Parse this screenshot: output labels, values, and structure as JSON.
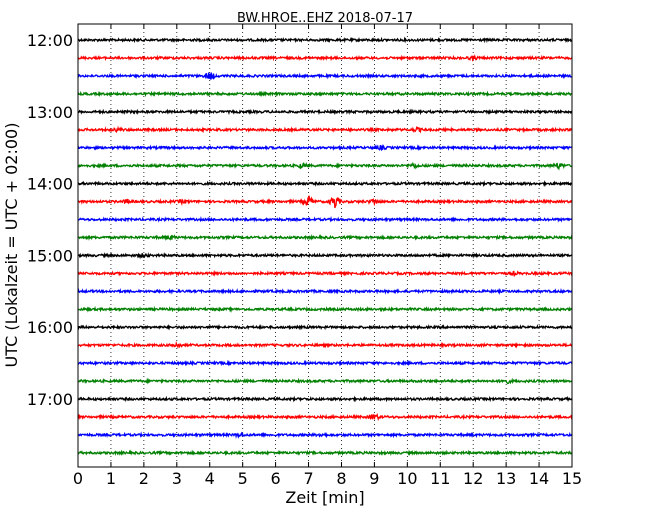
{
  "chart_data": {
    "type": "line",
    "title": "BW.HROE..EHZ 2018-07-17",
    "xlabel": "Zeit  [min]",
    "ylabel": "UTC (Lokalzeit = UTC + 02:00)",
    "xlim": [
      0,
      15
    ],
    "x_ticks": [
      "0",
      "1",
      "2",
      "3",
      "4",
      "5",
      "6",
      "7",
      "8",
      "9",
      "10",
      "11",
      "12",
      "13",
      "14",
      "15"
    ],
    "y_tick_labels": [
      "12:00",
      "13:00",
      "14:00",
      "15:00",
      "16:00",
      "17:00"
    ],
    "grid": {
      "x": "dotted",
      "y": "none"
    },
    "colors": [
      "#000000",
      "#ff0000",
      "#0000ff",
      "#008000"
    ],
    "series": [
      {
        "start": "12:00",
        "color": "#000000",
        "events": []
      },
      {
        "start": "12:15",
        "color": "#ff0000",
        "events": [
          {
            "t": 12.0,
            "amp": 1.2
          }
        ]
      },
      {
        "start": "12:30",
        "color": "#0000ff",
        "events": [
          {
            "t": 4.0,
            "amp": 3.0
          }
        ]
      },
      {
        "start": "12:45",
        "color": "#008000",
        "events": []
      },
      {
        "start": "13:00",
        "color": "#000000",
        "events": []
      },
      {
        "start": "13:15",
        "color": "#ff0000",
        "events": [
          {
            "t": 1.2,
            "amp": 1.0
          },
          {
            "t": 10.3,
            "amp": 1.1
          }
        ]
      },
      {
        "start": "13:30",
        "color": "#0000ff",
        "events": [
          {
            "t": 9.2,
            "amp": 1.4
          }
        ]
      },
      {
        "start": "13:45",
        "color": "#008000",
        "events": [
          {
            "t": 6.8,
            "amp": 1.5
          },
          {
            "t": 10.2,
            "amp": 1.5
          },
          {
            "t": 14.6,
            "amp": 2.0
          }
        ]
      },
      {
        "start": "14:00",
        "color": "#000000",
        "events": []
      },
      {
        "start": "14:15",
        "color": "#ff0000",
        "events": [
          {
            "t": 1.5,
            "amp": 1.3
          },
          {
            "t": 3.2,
            "amp": 1.2
          },
          {
            "t": 7.0,
            "amp": 4.5
          },
          {
            "t": 7.8,
            "amp": 5.5
          },
          {
            "t": 9.0,
            "amp": 1.8
          }
        ]
      },
      {
        "start": "14:30",
        "color": "#0000ff",
        "events": []
      },
      {
        "start": "14:45",
        "color": "#008000",
        "events": [
          {
            "t": 2.8,
            "amp": 1.4
          }
        ]
      },
      {
        "start": "15:00",
        "color": "#000000",
        "events": [
          {
            "t": 2.0,
            "amp": 1.2
          }
        ]
      },
      {
        "start": "15:15",
        "color": "#ff0000",
        "events": [
          {
            "t": 13.2,
            "amp": 1.1
          }
        ]
      },
      {
        "start": "15:30",
        "color": "#0000ff",
        "events": []
      },
      {
        "start": "15:45",
        "color": "#008000",
        "events": []
      },
      {
        "start": "16:00",
        "color": "#000000",
        "events": []
      },
      {
        "start": "16:15",
        "color": "#ff0000",
        "events": [
          {
            "t": 3.0,
            "amp": 1.6
          }
        ]
      },
      {
        "start": "16:30",
        "color": "#0000ff",
        "events": []
      },
      {
        "start": "16:45",
        "color": "#008000",
        "events": [
          {
            "t": 13.0,
            "amp": 1.5
          }
        ]
      },
      {
        "start": "17:00",
        "color": "#000000",
        "events": []
      },
      {
        "start": "17:15",
        "color": "#ff0000",
        "events": [
          {
            "t": 9.0,
            "amp": 2.2
          }
        ]
      },
      {
        "start": "17:30",
        "color": "#0000ff",
        "events": [
          {
            "t": 4.9,
            "amp": 1.1
          },
          {
            "t": 7.4,
            "amp": 1.1
          }
        ]
      },
      {
        "start": "17:45",
        "color": "#008000",
        "events": []
      }
    ]
  }
}
